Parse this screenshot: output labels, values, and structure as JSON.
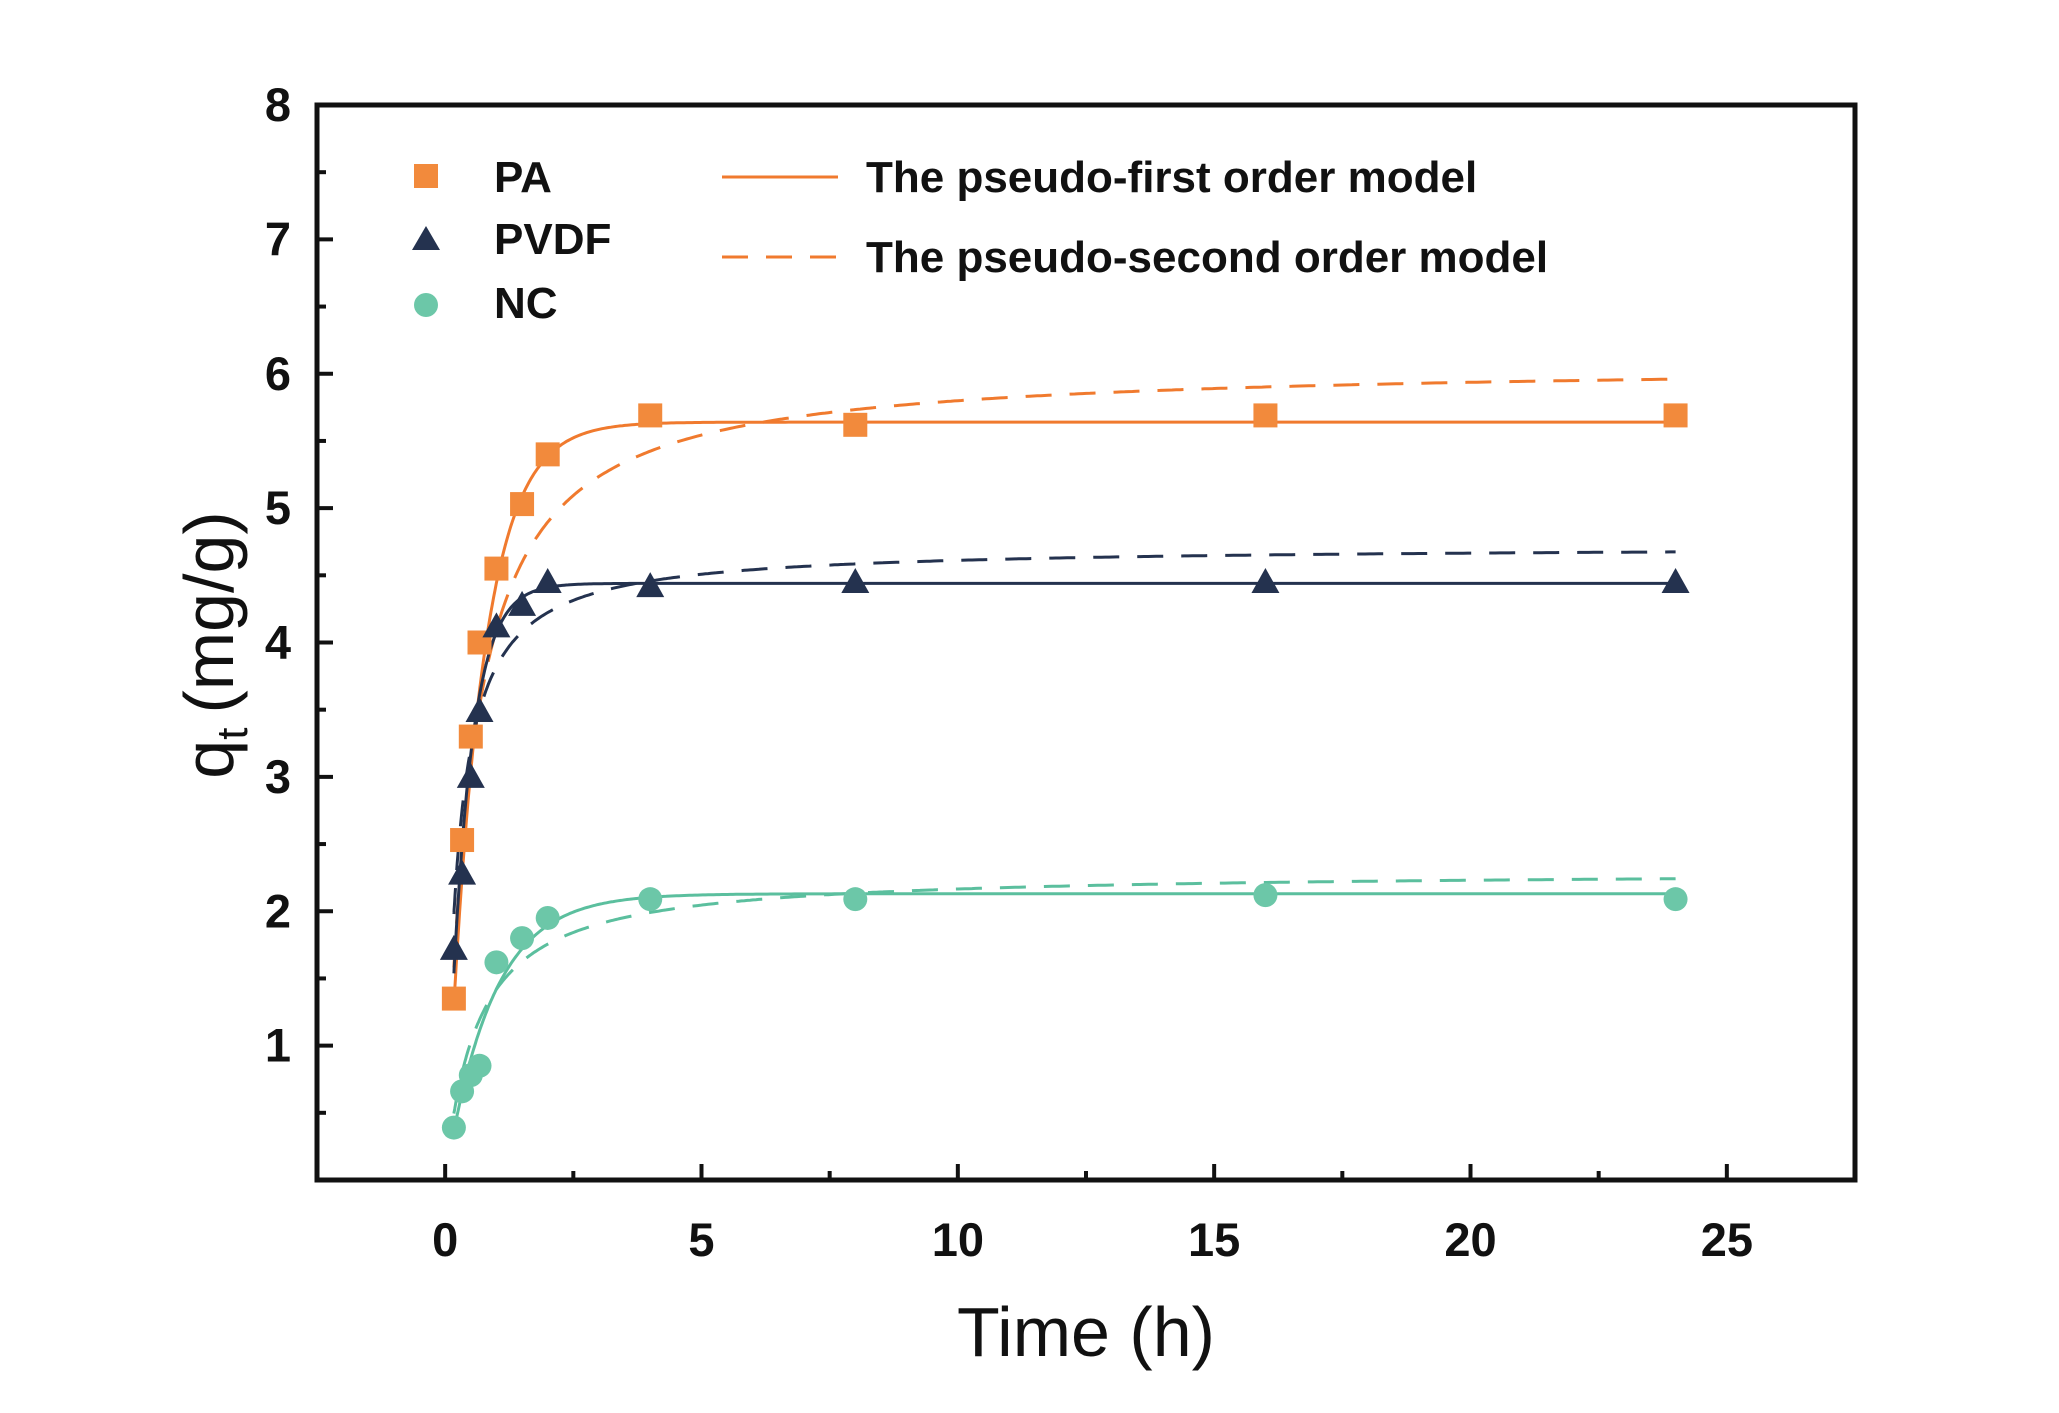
{
  "chart_data": {
    "type": "scatter",
    "title": "",
    "xlabel": "Time (h)",
    "ylabel_main": "q",
    "ylabel_sub": "t",
    "ylabel_unit": "(mg/g)",
    "xlim": [
      -2.5,
      27.5
    ],
    "ylim": [
      0,
      8
    ],
    "xticks": [
      0,
      5,
      10,
      15,
      20,
      25
    ],
    "xtick_labels": [
      "0",
      "5",
      "10",
      "15",
      "20",
      "25"
    ],
    "yticks": [
      1,
      2,
      3,
      4,
      5,
      6,
      7,
      8
    ],
    "ytick_labels": [
      "1",
      "2",
      "3",
      "4",
      "5",
      "6",
      "7",
      "8"
    ],
    "grid": false,
    "legend_position": "top-left",
    "series": [
      {
        "name": "PA",
        "marker": "square",
        "color": "#F28A3C",
        "fit_color": "#F07A2E",
        "x": [
          0.17,
          0.33,
          0.5,
          0.67,
          1,
          1.5,
          2,
          4,
          8,
          16,
          24
        ],
        "y": [
          1.35,
          2.53,
          3.3,
          4.0,
          4.55,
          5.03,
          5.4,
          5.69,
          5.62,
          5.69,
          5.69
        ],
        "first_order": {
          "qe": 5.64,
          "k1": 1.55
        },
        "second_order": {
          "qe": 6.08,
          "k2": 0.34
        }
      },
      {
        "name": "PVDF",
        "marker": "triangle",
        "color": "#24324F",
        "fit_color": "#24324F",
        "x": [
          0.17,
          0.33,
          0.5,
          0.67,
          1,
          1.5,
          2,
          4,
          8,
          16,
          24
        ],
        "y": [
          1.72,
          2.28,
          3.0,
          3.49,
          4.12,
          4.28,
          4.45,
          4.42,
          4.45,
          4.45,
          4.45
        ],
        "first_order": {
          "qe": 4.44,
          "k1": 2.5
        },
        "second_order": {
          "qe": 4.72,
          "k2": 0.9
        }
      },
      {
        "name": "NC",
        "marker": "circle",
        "color": "#6CC7A8",
        "fit_color": "#5BBF9E",
        "x": [
          0.17,
          0.33,
          0.5,
          0.67,
          1,
          1.5,
          2,
          4,
          8,
          16,
          24
        ],
        "y": [
          0.39,
          0.66,
          0.78,
          0.85,
          1.62,
          1.8,
          1.95,
          2.09,
          2.09,
          2.12,
          2.09
        ],
        "first_order": {
          "qe": 2.13,
          "k1": 1.1
        },
        "second_order": {
          "qe": 2.3,
          "k2": 0.7
        }
      }
    ],
    "fit_legend": [
      {
        "label": "The pseudo-first order model",
        "style": "solid"
      },
      {
        "label": "The pseudo-second order model",
        "style": "dashed"
      }
    ]
  }
}
